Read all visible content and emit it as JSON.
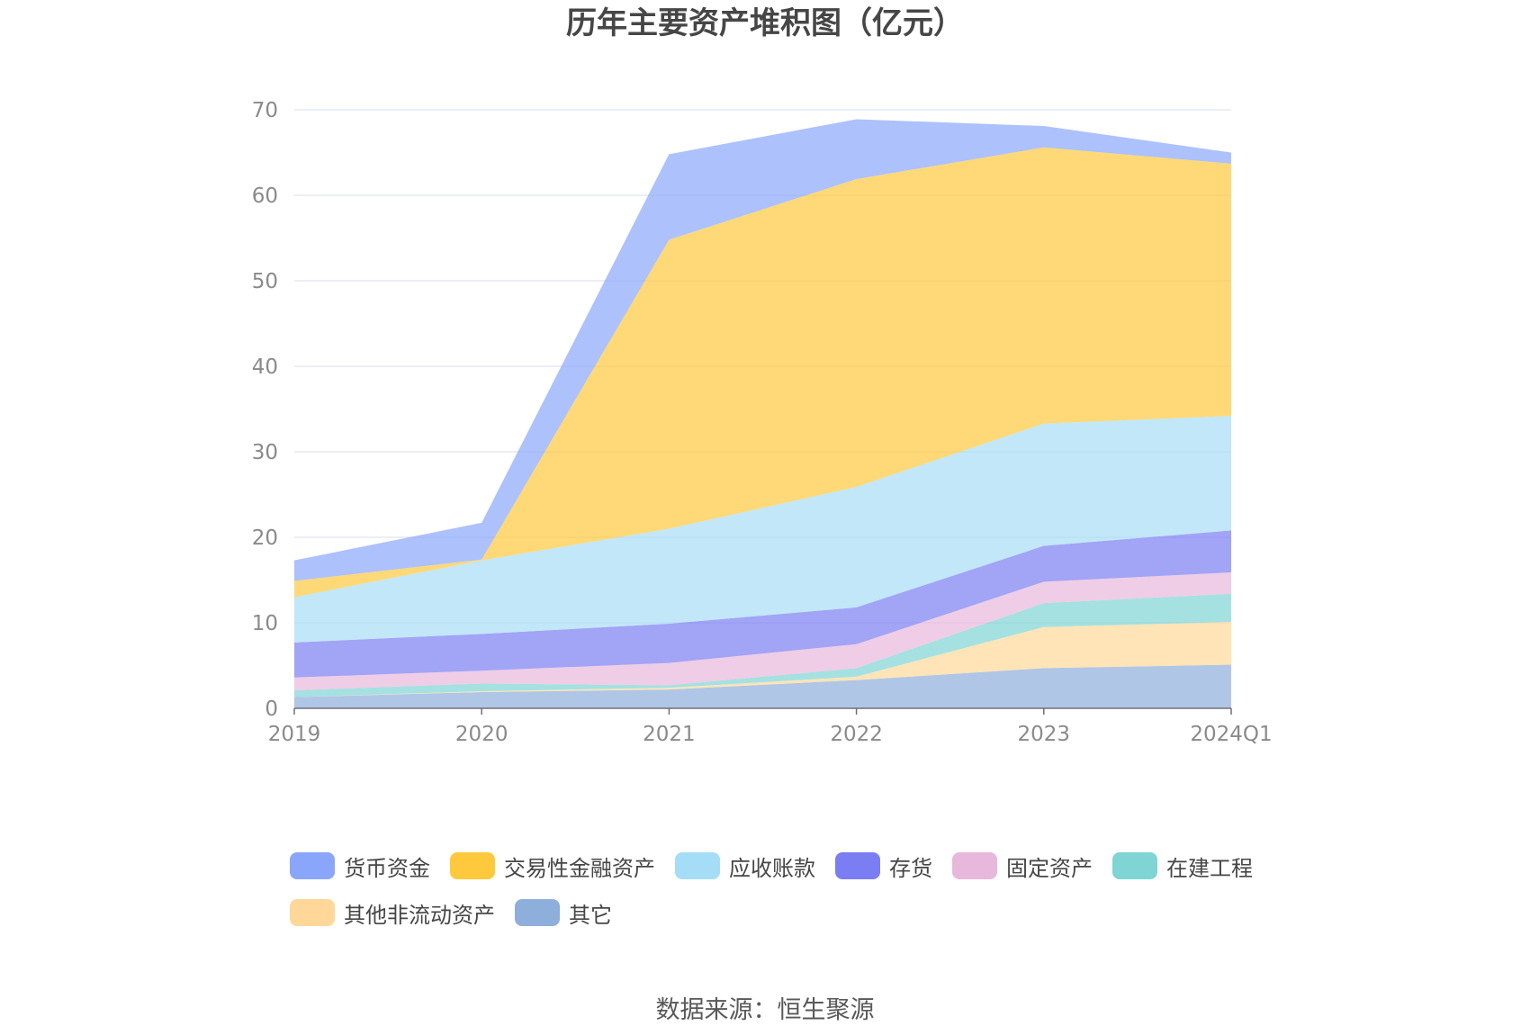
{
  "chart_data": {
    "type": "area",
    "stacked": true,
    "title": "历年主要资产堆积图（亿元）",
    "source": "数据来源：恒生聚源",
    "x": [
      "2019",
      "2020",
      "2021",
      "2022",
      "2023",
      "2024Q1"
    ],
    "ylim": [
      0,
      70
    ],
    "yticks": [
      "0",
      "10",
      "20",
      "30",
      "40",
      "50",
      "60",
      "70"
    ],
    "grid": true,
    "legend_position": "bottom",
    "series": [
      {
        "name": "其它",
        "color": "#8eaedb",
        "values": [
          1.3,
          1.9,
          2.2,
          3.3,
          4.7,
          5.1
        ]
      },
      {
        "name": "其他非流动资产",
        "color": "#ffd899",
        "values": [
          0.0,
          0.1,
          0.2,
          0.4,
          4.8,
          5.0
        ]
      },
      {
        "name": "在建工程",
        "color": "#7fd4d4",
        "values": [
          0.8,
          0.9,
          0.3,
          1.0,
          2.8,
          3.3
        ]
      },
      {
        "name": "固定资产",
        "color": "#e8b8dc",
        "values": [
          1.5,
          1.5,
          2.6,
          2.8,
          2.5,
          2.5
        ]
      },
      {
        "name": "存货",
        "color": "#7b7ef2",
        "values": [
          4.1,
          4.3,
          4.6,
          4.3,
          4.2,
          4.9
        ]
      },
      {
        "name": "应收账款",
        "color": "#a6ddf6",
        "values": [
          5.3,
          8.6,
          11.1,
          14.1,
          14.3,
          13.4
        ]
      },
      {
        "name": "交易性金融资产",
        "color": "#ffc93d",
        "values": [
          1.9,
          0.1,
          33.8,
          36.0,
          32.3,
          29.5
        ]
      },
      {
        "name": "货币资金",
        "color": "#8aa6fb",
        "values": [
          2.4,
          4.3,
          10.0,
          7.0,
          2.5,
          1.3
        ]
      }
    ],
    "legend_order": [
      "货币资金",
      "交易性金融资产",
      "应收账款",
      "存货",
      "固定资产",
      "在建工程",
      "其他非流动资产",
      "其它"
    ]
  }
}
